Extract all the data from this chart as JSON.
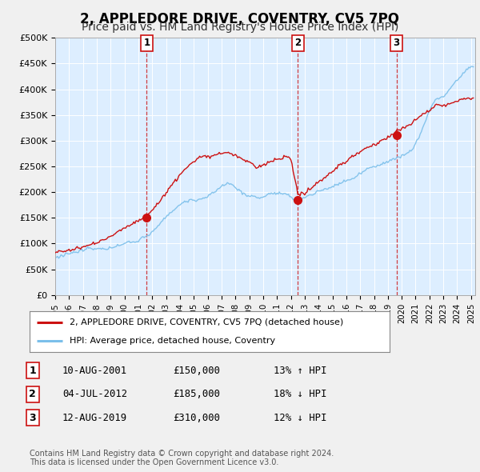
{
  "title": "2, APPLEDORE DRIVE, COVENTRY, CV5 7PQ",
  "subtitle": "Price paid vs. HM Land Registry's House Price Index (HPI)",
  "title_fontsize": 12,
  "subtitle_fontsize": 10,
  "ylabel_ticks": [
    "£0",
    "£50K",
    "£100K",
    "£150K",
    "£200K",
    "£250K",
    "£300K",
    "£350K",
    "£400K",
    "£450K",
    "£500K"
  ],
  "ytick_values": [
    0,
    50000,
    100000,
    150000,
    200000,
    250000,
    300000,
    350000,
    400000,
    450000,
    500000
  ],
  "ylim": [
    0,
    500000
  ],
  "xlim_start": 1995.0,
  "xlim_end": 2025.3,
  "hpi_color": "#7bbfea",
  "price_color": "#cc1111",
  "background_color": "#f0f0f0",
  "plot_bg_color": "#ddeeff",
  "grid_color": "#ffffff",
  "sale_points": [
    {
      "year": 2001.608,
      "price": 150000,
      "label": "1"
    },
    {
      "year": 2012.503,
      "price": 185000,
      "label": "2"
    },
    {
      "year": 2019.617,
      "price": 310000,
      "label": "3"
    }
  ],
  "legend_entries": [
    {
      "label": "2, APPLEDORE DRIVE, COVENTRY, CV5 7PQ (detached house)",
      "color": "#cc1111"
    },
    {
      "label": "HPI: Average price, detached house, Coventry",
      "color": "#7bbfea"
    }
  ],
  "table_rows": [
    {
      "num": "1",
      "date": "10-AUG-2001",
      "price": "£150,000",
      "hpi": "13% ↑ HPI"
    },
    {
      "num": "2",
      "date": "04-JUL-2012",
      "price": "£185,000",
      "hpi": "18% ↓ HPI"
    },
    {
      "num": "3",
      "date": "12-AUG-2019",
      "price": "£310,000",
      "hpi": "12% ↓ HPI"
    }
  ],
  "footer": "Contains HM Land Registry data © Crown copyright and database right 2024.\nThis data is licensed under the Open Government Licence v3.0.",
  "vline_color": "#cc1111"
}
